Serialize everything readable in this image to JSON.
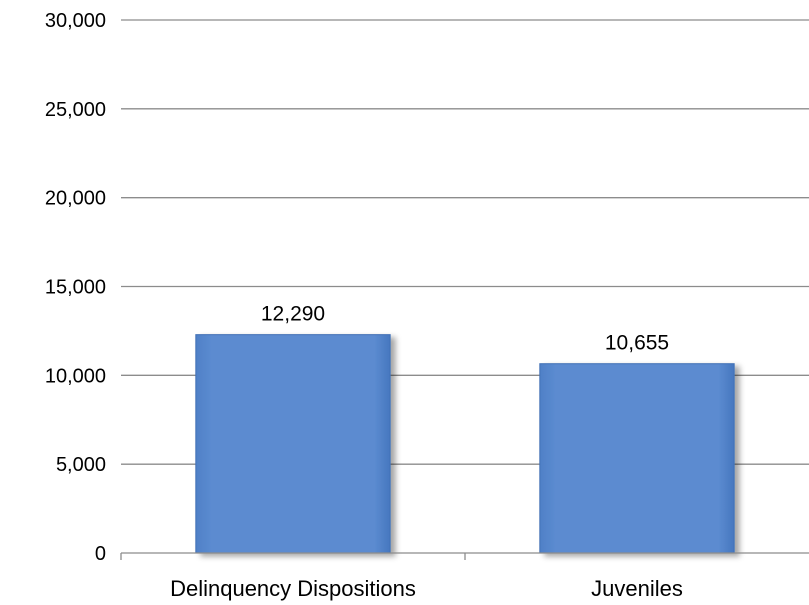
{
  "chart_data": {
    "type": "bar",
    "categories": [
      "Delinquency Dispositions",
      "Juveniles"
    ],
    "values": [
      12290,
      10655
    ],
    "value_labels": [
      "12,290",
      "10,655"
    ],
    "ylim": [
      0,
      30000
    ],
    "yticks": [
      0,
      5000,
      10000,
      15000,
      20000,
      25000,
      30000
    ],
    "ytick_labels": [
      "0",
      "5,000",
      "10,000",
      "15,000",
      "20,000",
      "25,000",
      "30,000"
    ],
    "grid": true,
    "legend": "none",
    "bar_color": "#5b8bd0",
    "bar_edge_color": "#3f6fb5"
  }
}
